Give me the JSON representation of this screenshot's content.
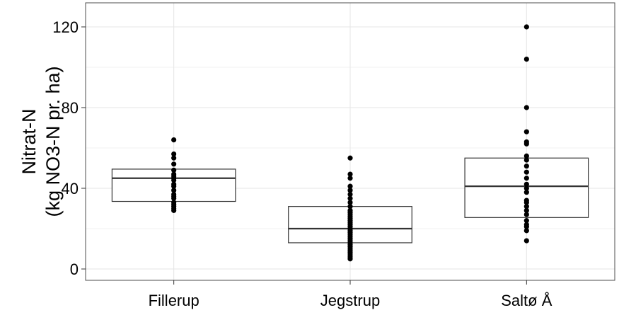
{
  "chart_data": {
    "type": "box",
    "title": "",
    "xlabel": "",
    "ylabel_lines": [
      "Nitrat-N",
      "(kg NO3-N pr. ha)"
    ],
    "ylim": [
      -4,
      130
    ],
    "yticks": [
      0,
      40,
      80,
      120
    ],
    "ytick_labels": [
      "0",
      "40",
      "80",
      "120"
    ],
    "grid": true,
    "categories": [
      "Fillerup",
      "Jegstrup",
      "Saltø Å"
    ],
    "boxes": [
      {
        "category": "Fillerup",
        "q1": 33.5,
        "median": 45,
        "q3": 49.5
      },
      {
        "category": "Jegstrup",
        "q1": 13,
        "median": 20,
        "q3": 31
      },
      {
        "category": "Saltø Å",
        "q1": 25.5,
        "median": 41,
        "q3": 55
      }
    ],
    "points": [
      {
        "category": "Fillerup",
        "values": [
          64,
          57,
          55,
          52,
          49,
          47,
          46,
          45,
          44,
          42,
          41,
          39,
          37,
          36,
          35,
          33,
          32,
          31,
          30,
          29
        ]
      },
      {
        "category": "Jegstrup",
        "values": [
          55,
          47,
          45,
          41,
          39,
          37,
          35,
          33,
          31,
          29,
          28,
          27,
          26,
          25,
          24,
          23,
          22,
          21,
          20,
          19,
          18,
          17,
          16,
          15,
          14,
          13,
          12,
          11,
          10,
          9,
          8,
          7,
          6,
          5
        ]
      },
      {
        "category": "Saltø Å",
        "values": [
          120,
          104,
          80,
          68,
          63,
          62,
          56,
          54,
          51,
          48,
          45,
          42,
          40,
          38,
          34,
          33,
          31,
          29,
          27,
          24,
          22,
          21,
          19,
          14
        ]
      }
    ]
  }
}
